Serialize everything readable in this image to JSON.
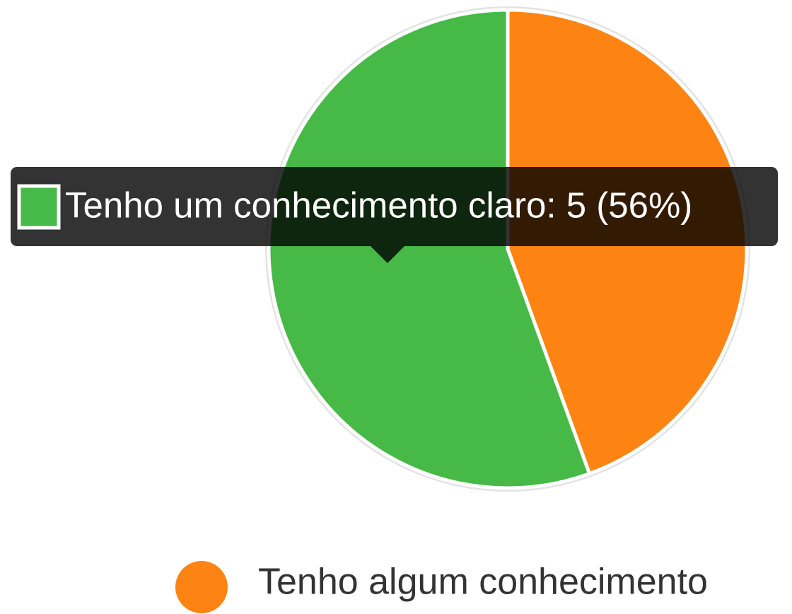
{
  "chart_data": {
    "type": "pie",
    "categories": [
      "Tenho algum conhecimento",
      "Tenho um conhecimento claro"
    ],
    "values": [
      4,
      5
    ],
    "colors": [
      "#fd8412",
      "#47b947"
    ],
    "tooltip": {
      "text": "Tenho um conhecimento claro: 5 (56%)",
      "series_index": 1
    }
  }
}
